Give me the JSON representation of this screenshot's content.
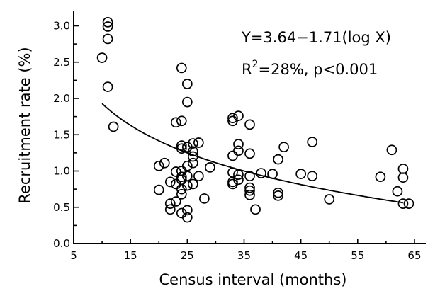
{
  "chart_data": {
    "type": "scatter",
    "xlabel": "Census interval (months)",
    "ylabel": "Recruitment rate (%)",
    "xlim": [
      5,
      67
    ],
    "ylim": [
      0,
      3.2
    ],
    "x_ticks": [
      5,
      15,
      25,
      35,
      45,
      55,
      65
    ],
    "y_ticks": [
      0.0,
      0.5,
      1.0,
      1.5,
      2.0,
      2.5,
      3.0
    ],
    "x_tick_labels": [
      "5",
      "15",
      "25",
      "35",
      "45",
      "55",
      "65"
    ],
    "y_tick_labels": [
      "0.0",
      "0.5",
      "1.0",
      "1.5",
      "2.0",
      "2.5",
      "3.0"
    ],
    "grid": false,
    "annotation": {
      "equation": "Y=3.64−1.71(log X)",
      "r2_prefix": "R",
      "r2_sup": "2",
      "r2_rest": "=28%, p<0.001"
    },
    "fit": {
      "intercept": 3.64,
      "slope": -1.71,
      "transform": "log10",
      "x_range": [
        10,
        63
      ]
    },
    "points": [
      [
        10,
        2.56
      ],
      [
        11,
        3.05
      ],
      [
        11,
        2.99
      ],
      [
        11,
        2.82
      ],
      [
        11,
        2.16
      ],
      [
        12,
        1.61
      ],
      [
        20,
        0.74
      ],
      [
        20,
        1.07
      ],
      [
        21,
        1.11
      ],
      [
        22,
        0.85
      ],
      [
        22,
        0.55
      ],
      [
        22,
        0.47
      ],
      [
        23,
        1.67
      ],
      [
        23,
        0.99
      ],
      [
        23,
        0.82
      ],
      [
        23,
        0.58
      ],
      [
        24,
        2.42
      ],
      [
        24,
        1.69
      ],
      [
        24,
        1.35
      ],
      [
        24,
        1.31
      ],
      [
        24,
        1.0
      ],
      [
        24,
        0.92
      ],
      [
        24,
        0.88
      ],
      [
        24,
        0.75
      ],
      [
        24,
        0.68
      ],
      [
        24,
        0.42
      ],
      [
        25,
        2.2
      ],
      [
        25,
        1.95
      ],
      [
        25,
        1.33
      ],
      [
        25,
        1.07
      ],
      [
        25,
        0.93
      ],
      [
        25,
        0.8
      ],
      [
        25,
        0.46
      ],
      [
        25,
        0.36
      ],
      [
        26,
        1.38
      ],
      [
        26,
        1.27
      ],
      [
        26,
        1.2
      ],
      [
        26,
        1.11
      ],
      [
        26,
        0.82
      ],
      [
        27,
        1.39
      ],
      [
        27,
        0.93
      ],
      [
        28,
        0.62
      ],
      [
        29,
        1.05
      ],
      [
        33,
        1.73
      ],
      [
        33,
        1.69
      ],
      [
        33,
        1.21
      ],
      [
        33,
        0.98
      ],
      [
        33,
        0.85
      ],
      [
        33,
        0.82
      ],
      [
        34,
        1.76
      ],
      [
        34,
        1.37
      ],
      [
        34,
        1.28
      ],
      [
        34,
        0.95
      ],
      [
        34,
        0.88
      ],
      [
        36,
        1.64
      ],
      [
        36,
        1.24
      ],
      [
        36,
        0.93
      ],
      [
        36,
        0.77
      ],
      [
        36,
        0.73
      ],
      [
        36,
        0.67
      ],
      [
        37,
        0.47
      ],
      [
        38,
        0.97
      ],
      [
        40,
        0.96
      ],
      [
        41,
        1.16
      ],
      [
        41,
        0.7
      ],
      [
        41,
        0.66
      ],
      [
        42,
        1.33
      ],
      [
        45,
        0.96
      ],
      [
        47,
        1.4
      ],
      [
        47,
        0.93
      ],
      [
        50,
        0.61
      ],
      [
        59,
        0.92
      ],
      [
        61,
        1.29
      ],
      [
        62,
        0.72
      ],
      [
        63,
        1.03
      ],
      [
        63,
        0.91
      ],
      [
        63,
        0.55
      ],
      [
        64,
        0.55
      ]
    ]
  }
}
